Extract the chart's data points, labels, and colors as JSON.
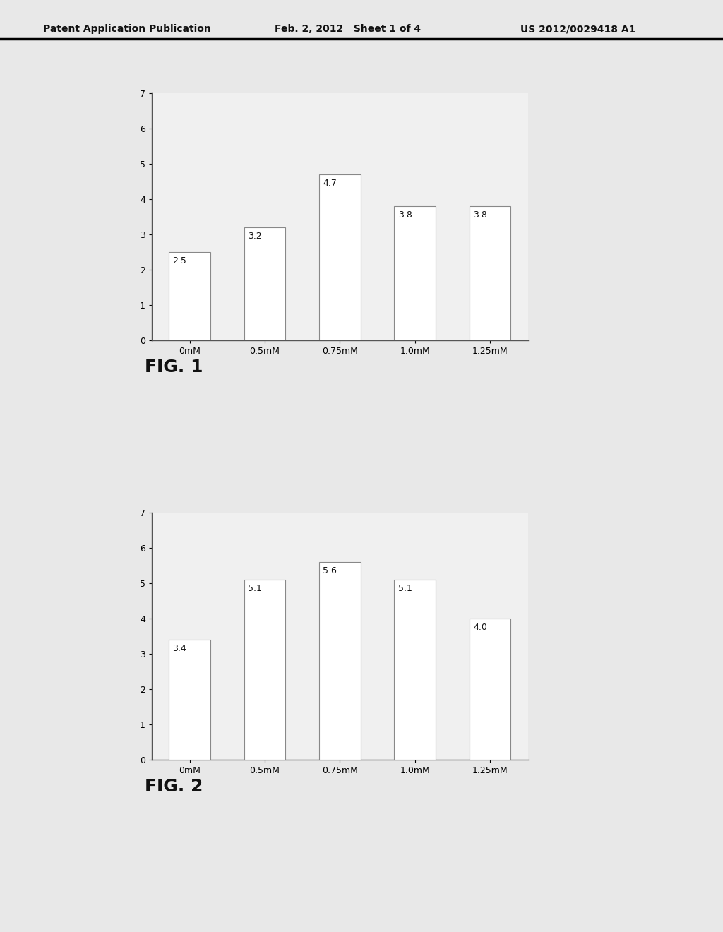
{
  "fig1": {
    "categories": [
      "0mM",
      "0.5mM",
      "0.75mM",
      "1.0mM",
      "1.25mM"
    ],
    "values": [
      2.5,
      3.2,
      4.7,
      3.8,
      3.8
    ],
    "ylim": [
      0,
      7
    ],
    "yticks": [
      0,
      1,
      2,
      3,
      4,
      5,
      6,
      7
    ],
    "label": "FIG. 1"
  },
  "fig2": {
    "categories": [
      "0mM",
      "0.5mM",
      "0.75mM",
      "1.0mM",
      "1.25mM"
    ],
    "values": [
      3.4,
      5.1,
      5.6,
      5.1,
      4.0
    ],
    "ylim": [
      0,
      7
    ],
    "yticks": [
      0,
      1,
      2,
      3,
      4,
      5,
      6,
      7
    ],
    "label": "FIG. 2"
  },
  "header_left": "Patent Application Publication",
  "header_mid": "Feb. 2, 2012   Sheet 1 of 4",
  "header_right": "US 2012/0029418 A1",
  "bar_color": "#ffffff",
  "bar_edgecolor": "#888888",
  "bar_width": 0.55,
  "background_color": "#e8e8e8",
  "axes_bg": "#f0f0f0",
  "text_color": "#111111",
  "tick_fontsize": 9,
  "fig_label_fontsize": 18,
  "value_label_fontsize": 9,
  "header_fontsize": 10
}
